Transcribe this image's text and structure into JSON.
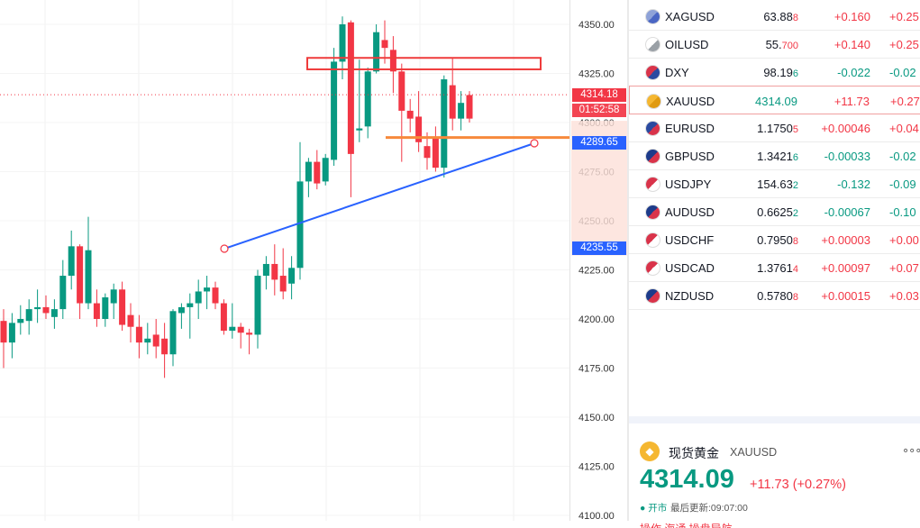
{
  "colors": {
    "up": "#f23645",
    "down": "#089981",
    "resistance": "#ef3b3b",
    "support": "#f7893b",
    "trendline": "#2962ff"
  },
  "chart_data": {
    "type": "candlestick",
    "symbol": "XAUUSD",
    "ylim": [
      4100,
      4355
    ],
    "yticks": [
      4350,
      4325,
      4300,
      4275,
      4250,
      4225,
      4200,
      4175,
      4150,
      4125,
      4100
    ],
    "ytick_labels": [
      "4350.00",
      "4325.00",
      "4300.00",
      "4275.00",
      "4250.00",
      "4225.00",
      "4200.00",
      "4175.00",
      "4150.00",
      "4125.00",
      "4100.00"
    ],
    "candles": [
      {
        "o": 4199,
        "h": 4205,
        "l": 4175,
        "c": 4188
      },
      {
        "o": 4188,
        "h": 4203,
        "l": 4180,
        "c": 4198
      },
      {
        "o": 4198,
        "h": 4207,
        "l": 4192,
        "c": 4200
      },
      {
        "o": 4199,
        "h": 4210,
        "l": 4192,
        "c": 4205
      },
      {
        "o": 4205,
        "h": 4215,
        "l": 4198,
        "c": 4206
      },
      {
        "o": 4206,
        "h": 4212,
        "l": 4200,
        "c": 4203
      },
      {
        "o": 4201,
        "h": 4210,
        "l": 4195,
        "c": 4205
      },
      {
        "o": 4205,
        "h": 4230,
        "l": 4200,
        "c": 4222
      },
      {
        "o": 4222,
        "h": 4245,
        "l": 4215,
        "c": 4237
      },
      {
        "o": 4237,
        "h": 4238,
        "l": 4200,
        "c": 4208
      },
      {
        "o": 4208,
        "h": 4252,
        "l": 4205,
        "c": 4235
      },
      {
        "o": 4208,
        "h": 4215,
        "l": 4196,
        "c": 4200
      },
      {
        "o": 4200,
        "h": 4213,
        "l": 4196,
        "c": 4211
      },
      {
        "o": 4208,
        "h": 4218,
        "l": 4200,
        "c": 4215
      },
      {
        "o": 4215,
        "h": 4219,
        "l": 4194,
        "c": 4197
      },
      {
        "o": 4202,
        "h": 4208,
        "l": 4188,
        "c": 4196
      },
      {
        "o": 4196,
        "h": 4202,
        "l": 4180,
        "c": 4188
      },
      {
        "o": 4188,
        "h": 4198,
        "l": 4182,
        "c": 4190
      },
      {
        "o": 4192,
        "h": 4200,
        "l": 4180,
        "c": 4186
      },
      {
        "o": 4190,
        "h": 4198,
        "l": 4170,
        "c": 4182
      },
      {
        "o": 4182,
        "h": 4205,
        "l": 4176,
        "c": 4204
      },
      {
        "o": 4203,
        "h": 4208,
        "l": 4195,
        "c": 4206
      },
      {
        "o": 4206,
        "h": 4213,
        "l": 4190,
        "c": 4208
      },
      {
        "o": 4208,
        "h": 4220,
        "l": 4200,
        "c": 4214
      },
      {
        "o": 4214,
        "h": 4222,
        "l": 4205,
        "c": 4216
      },
      {
        "o": 4216,
        "h": 4219,
        "l": 4205,
        "c": 4208
      },
      {
        "o": 4208,
        "h": 4210,
        "l": 4192,
        "c": 4194
      },
      {
        "o": 4194,
        "h": 4208,
        "l": 4190,
        "c": 4196
      },
      {
        "o": 4196,
        "h": 4198,
        "l": 4185,
        "c": 4193
      },
      {
        "o": 4193,
        "h": 4195,
        "l": 4182,
        "c": 4192
      },
      {
        "o": 4192,
        "h": 4225,
        "l": 4185,
        "c": 4222
      },
      {
        "o": 4222,
        "h": 4232,
        "l": 4215,
        "c": 4228
      },
      {
        "o": 4228,
        "h": 4238,
        "l": 4212,
        "c": 4220
      },
      {
        "o": 4222,
        "h": 4236,
        "l": 4210,
        "c": 4214
      },
      {
        "o": 4218,
        "h": 4232,
        "l": 4210,
        "c": 4226
      },
      {
        "o": 4226,
        "h": 4290,
        "l": 4220,
        "c": 4270
      },
      {
        "o": 4270,
        "h": 4282,
        "l": 4262,
        "c": 4280
      },
      {
        "o": 4280,
        "h": 4286,
        "l": 4266,
        "c": 4269
      },
      {
        "o": 4270,
        "h": 4284,
        "l": 4268,
        "c": 4282
      },
      {
        "o": 4281,
        "h": 4338,
        "l": 4278,
        "c": 4331
      },
      {
        "o": 4331,
        "h": 4354,
        "l": 4322,
        "c": 4350
      },
      {
        "o": 4351,
        "h": 4352,
        "l": 4262,
        "c": 4284
      },
      {
        "o": 4296,
        "h": 4332,
        "l": 4290,
        "c": 4297
      },
      {
        "o": 4298,
        "h": 4328,
        "l": 4292,
        "c": 4326
      },
      {
        "o": 4326,
        "h": 4350,
        "l": 4325,
        "c": 4346
      },
      {
        "o": 4342,
        "h": 4352,
        "l": 4330,
        "c": 4338
      },
      {
        "o": 4337,
        "h": 4344,
        "l": 4315,
        "c": 4326
      },
      {
        "o": 4326,
        "h": 4330,
        "l": 4280,
        "c": 4306
      },
      {
        "o": 4306,
        "h": 4312,
        "l": 4295,
        "c": 4302
      },
      {
        "o": 4303,
        "h": 4316,
        "l": 4285,
        "c": 4290
      },
      {
        "o": 4288,
        "h": 4295,
        "l": 4276,
        "c": 4282
      },
      {
        "o": 4292,
        "h": 4298,
        "l": 4275,
        "c": 4277
      },
      {
        "o": 4277,
        "h": 4324,
        "l": 4272,
        "c": 4322
      },
      {
        "o": 4319,
        "h": 4333,
        "l": 4296,
        "c": 4302
      },
      {
        "o": 4302,
        "h": 4316,
        "l": 4296,
        "c": 4310
      },
      {
        "o": 4314,
        "h": 4316,
        "l": 4300,
        "c": 4302
      }
    ],
    "price_line": {
      "value": 4314.18,
      "label": "4314.18",
      "timer": "01:52:58"
    },
    "horizontal_line": {
      "value": 4289.65,
      "label": "4289.65"
    },
    "trendline_tag": {
      "value": 4235.55,
      "label": "4235.55"
    },
    "resistance_box": {
      "from": 4328,
      "to": 4332
    },
    "trendline": {
      "p1": {
        "candle": 30,
        "price": 4236
      },
      "p2": {
        "candle": 58,
        "price": 4288
      }
    },
    "grid": true
  },
  "watchlist": [
    {
      "sym": "XAGUSD",
      "last_main": "63.88",
      "last_small": "8",
      "chg": "+0.160",
      "pct": "+0.25",
      "dir": "up",
      "flag": "#8ea2d8",
      "flag2": "#4a66c4"
    },
    {
      "sym": "OILUSD",
      "last_main": "55.",
      "last_small": "700",
      "chg": "+0.140",
      "pct": "+0.25",
      "dir": "up",
      "flag": "#ffffff",
      "flag2": "#9aa0a6"
    },
    {
      "sym": "DXY",
      "last_main": "98.19",
      "last_small": "6",
      "chg": "-0.022",
      "pct": "-0.02",
      "dir": "dn",
      "flag": "#d9334a",
      "flag2": "#2b4aa0"
    },
    {
      "sym": "XAUUSD",
      "last_main": "4314.09",
      "last_small": "",
      "chg": "+11.73",
      "pct": "+0.27",
      "dir": "up",
      "flag": "#f5b731",
      "flag2": "#e09a10",
      "selected": true
    },
    {
      "sym": "EURUSD",
      "last_main": "1.1750",
      "last_small": "5",
      "chg": "+0.00046",
      "pct": "+0.04",
      "dir": "up",
      "flag": "#2b4aa0",
      "flag2": "#d9334a"
    },
    {
      "sym": "GBPUSD",
      "last_main": "1.3421",
      "last_small": "6",
      "chg": "-0.00033",
      "pct": "-0.02",
      "dir": "dn",
      "flag": "#1d3b8a",
      "flag2": "#d9334a"
    },
    {
      "sym": "USDJPY",
      "last_main": "154.63",
      "last_small": "2",
      "chg": "-0.132",
      "pct": "-0.09",
      "dir": "dn",
      "flag": "#d9334a",
      "flag2": "#ffffff"
    },
    {
      "sym": "AUDUSD",
      "last_main": "0.6625",
      "last_small": "2",
      "chg": "-0.00067",
      "pct": "-0.10",
      "dir": "dn",
      "flag": "#1d3b8a",
      "flag2": "#d9334a"
    },
    {
      "sym": "USDCHF",
      "last_main": "0.7950",
      "last_small": "8",
      "chg": "+0.00003",
      "pct": "+0.00",
      "dir": "up",
      "flag": "#d9334a",
      "flag2": "#ffffff"
    },
    {
      "sym": "USDCAD",
      "last_main": "1.3761",
      "last_small": "4",
      "chg": "+0.00097",
      "pct": "+0.07",
      "dir": "up",
      "flag": "#d9334a",
      "flag2": "#ffffff"
    },
    {
      "sym": "NZDUSD",
      "last_main": "0.5780",
      "last_small": "8",
      "chg": "+0.00015",
      "pct": "+0.03",
      "dir": "up",
      "flag": "#1d3b8a",
      "flag2": "#d9334a"
    }
  ],
  "detail": {
    "name": "现货黄金",
    "symbol": "XAUUSD",
    "price": "4314.09",
    "change": "+11.73 (+0.27%)",
    "status": "● 开市",
    "updated": "最后更新:09:07:00",
    "cut_text": "操作    海通    操盘导航"
  }
}
